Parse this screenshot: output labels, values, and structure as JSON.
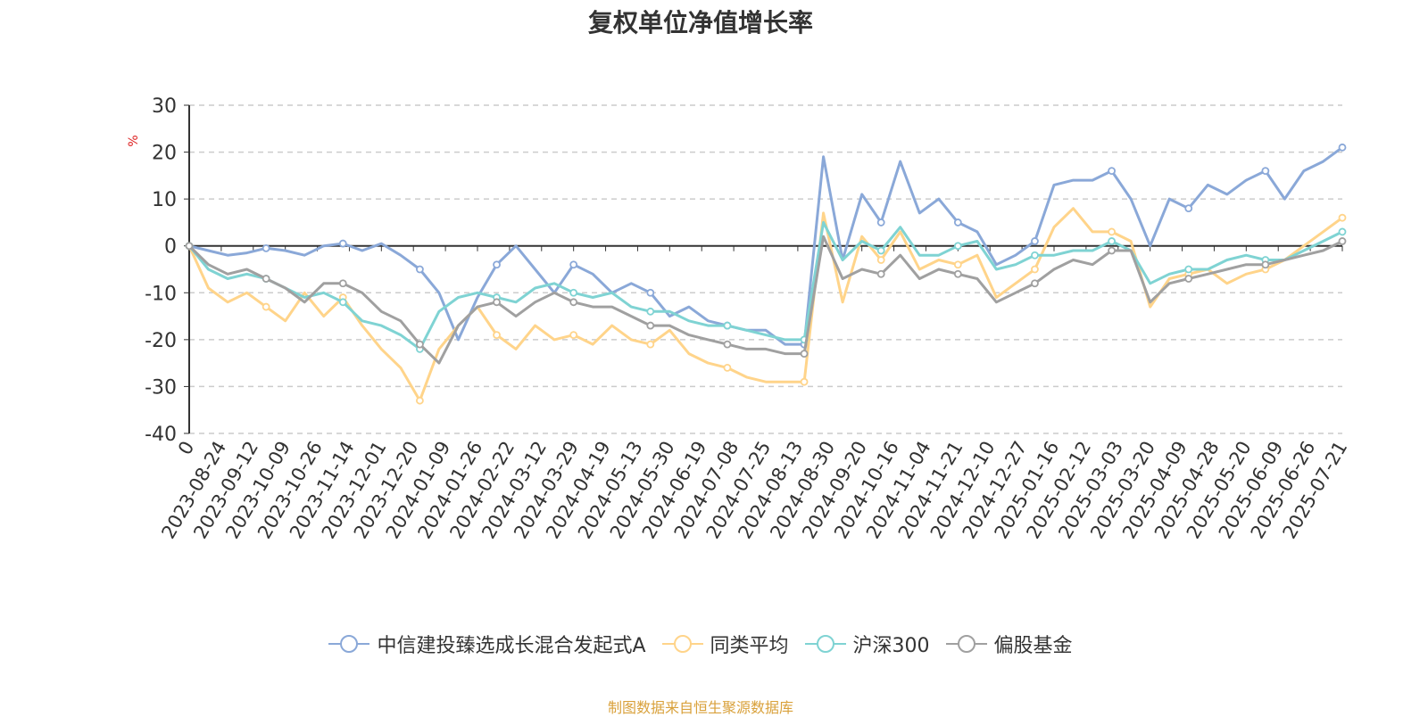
{
  "chart_data": {
    "type": "line",
    "title": "复权单位净值增长率",
    "ylabel": "%",
    "ylim": [
      -40,
      30
    ],
    "yticks": [
      -40,
      -30,
      -20,
      -10,
      0,
      10,
      20,
      30
    ],
    "x_tick_labels": [
      "0",
      "2023-08-24",
      "2023-09-12",
      "2023-10-09",
      "2023-10-26",
      "2023-11-14",
      "2023-12-01",
      "2023-12-20",
      "2024-01-09",
      "2024-01-26",
      "2024-02-22",
      "2024-03-12",
      "2024-03-29",
      "2024-04-19",
      "2024-05-13",
      "2024-05-30",
      "2024-06-19",
      "2024-07-08",
      "2024-07-25",
      "2024-08-13",
      "2024-08-30",
      "2024-09-20",
      "2024-10-16",
      "2024-11-04",
      "2024-11-21",
      "2024-12-10",
      "2024-12-27",
      "2025-01-16",
      "2025-02-12",
      "2025-03-03",
      "2025-03-20",
      "2025-04-09",
      "2025-04-28",
      "2025-05-20",
      "2025-06-09",
      "2025-06-26",
      "2025-07-21"
    ],
    "grid": "horizontal-dashed",
    "legend_position": "bottom",
    "series": [
      {
        "name": "中信建投臻选成长混合发起式A",
        "color": "#8aa8d8",
        "values": [
          0,
          -1,
          -2,
          -1.5,
          -0.5,
          -1,
          -2,
          0,
          0.5,
          -1,
          0.5,
          -2,
          -5,
          -10,
          -20,
          -11,
          -4,
          0,
          -5,
          -10,
          -4,
          -6,
          -10,
          -8,
          -10,
          -15,
          -13,
          -16,
          -17,
          -18,
          -18,
          -21,
          -21,
          19,
          -3,
          11,
          5,
          18,
          7,
          10,
          5,
          3,
          -4,
          -2,
          1,
          13,
          14,
          14,
          16,
          10,
          0,
          10,
          8,
          13,
          11,
          14,
          16,
          10,
          16,
          18,
          21
        ]
      },
      {
        "name": "同类平均",
        "color": "#ffd48a",
        "values": [
          0,
          -9,
          -12,
          -10,
          -13,
          -16,
          -10,
          -15,
          -11,
          -17,
          -22,
          -26,
          -33,
          -22,
          -17,
          -13,
          -19,
          -22,
          -17,
          -20,
          -19,
          -21,
          -17,
          -20,
          -21,
          -18,
          -23,
          -25,
          -26,
          -28,
          -29,
          -29,
          -29,
          7,
          -12,
          2,
          -3,
          3,
          -5,
          -3,
          -4,
          -2,
          -11,
          -8,
          -5,
          4,
          8,
          3,
          3,
          1,
          -13,
          -7,
          -6,
          -5,
          -8,
          -6,
          -5,
          -3,
          0,
          3,
          6
        ]
      },
      {
        "name": "沪深300",
        "color": "#7fd3d3",
        "values": [
          0,
          -5,
          -7,
          -6,
          -7,
          -9,
          -11,
          -10,
          -12,
          -16,
          -17,
          -19,
          -22,
          -14,
          -11,
          -10,
          -11,
          -12,
          -9,
          -8,
          -10,
          -11,
          -10,
          -13,
          -14,
          -14,
          -16,
          -17,
          -17,
          -18,
          -19,
          -20,
          -20,
          5,
          -3,
          1,
          -1,
          4,
          -2,
          -2,
          0,
          1,
          -5,
          -4,
          -2,
          -2,
          -1,
          -1,
          1,
          -1,
          -8,
          -6,
          -5,
          -5,
          -3,
          -2,
          -3,
          -3,
          -1,
          1,
          3
        ]
      },
      {
        "name": "偏股基金",
        "color": "#a0a0a0",
        "values": [
          0,
          -4,
          -6,
          -5,
          -7,
          -9,
          -12,
          -8,
          -8,
          -10,
          -14,
          -16,
          -21,
          -25,
          -17,
          -13,
          -12,
          -15,
          -12,
          -10,
          -12,
          -13,
          -13,
          -15,
          -17,
          -17,
          -19,
          -20,
          -21,
          -22,
          -22,
          -23,
          -23,
          2,
          -7,
          -5,
          -6,
          -2,
          -7,
          -5,
          -6,
          -7,
          -12,
          -10,
          -8,
          -5,
          -3,
          -4,
          -1,
          -1,
          -12,
          -8,
          -7,
          -6,
          -5,
          -4,
          -4,
          -3,
          -2,
          -1,
          1
        ]
      }
    ]
  },
  "source_note": "制图数据来自恒生聚源数据库"
}
